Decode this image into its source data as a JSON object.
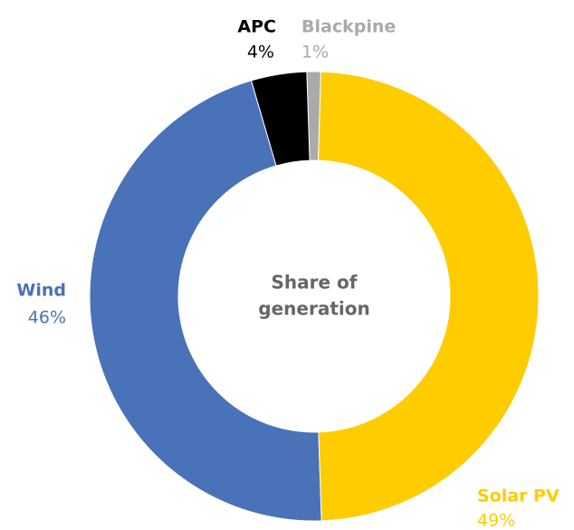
{
  "chart_data": {
    "type": "donut",
    "center_text": [
      "Share of",
      "generation"
    ],
    "categories": [
      "Solar PV",
      "Wind",
      "APC",
      "Blackpine"
    ],
    "values": [
      49,
      46,
      4,
      1
    ],
    "value_labels": [
      "49%",
      "46%",
      "4%",
      "1%"
    ],
    "colors": [
      "#ffcc00",
      "#4a72b8",
      "#000000",
      "#aaaaaa"
    ]
  }
}
